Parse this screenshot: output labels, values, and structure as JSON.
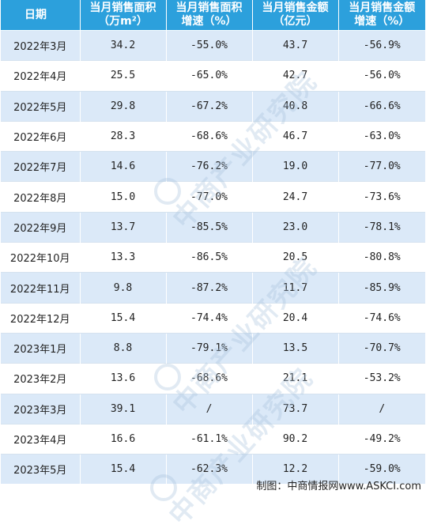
{
  "table": {
    "headers": [
      "日期",
      "当月销售面积\n（万m²）",
      "当月销售面积\n增速（%）",
      "当月销售金额\n（亿元）",
      "当月销售金额\n增速（%）"
    ],
    "rows": [
      [
        "2022年3月",
        "34.2",
        "-55.0%",
        "43.7",
        "-56.9%"
      ],
      [
        "2022年4月",
        "25.5",
        "-65.0%",
        "42.7",
        "-56.0%"
      ],
      [
        "2022年5月",
        "29.8",
        "-67.2%",
        "40.8",
        "-66.6%"
      ],
      [
        "2022年6月",
        "28.3",
        "-68.6%",
        "46.7",
        "-63.0%"
      ],
      [
        "2022年7月",
        "14.6",
        "-76.2%",
        "19.0",
        "-77.0%"
      ],
      [
        "2022年8月",
        "15.0",
        "-77.0%",
        "24.7",
        "-73.6%"
      ],
      [
        "2022年9月",
        "13.7",
        "-85.5%",
        "23.0",
        "-78.1%"
      ],
      [
        "2022年10月",
        "13.3",
        "-86.5%",
        "20.5",
        "-80.8%"
      ],
      [
        "2022年11月",
        "9.8",
        "-87.2%",
        "11.7",
        "-85.9%"
      ],
      [
        "2022年12月",
        "15.4",
        "-74.4%",
        "20.4",
        "-74.6%"
      ],
      [
        "2023年1月",
        "8.8",
        "-79.1%",
        "13.5",
        "-70.7%"
      ],
      [
        "2023年2月",
        "13.6",
        "-68.6%",
        "21.1",
        "-53.2%"
      ],
      [
        "2023年3月",
        "39.1",
        "/",
        "73.7",
        "/"
      ],
      [
        "2023年4月",
        "16.6",
        "-61.1%",
        "90.2",
        "-49.2%"
      ],
      [
        "2023年5月",
        "15.4",
        "-62.3%",
        "12.2",
        "-59.0%"
      ]
    ]
  },
  "watermark": "中商产业研究院",
  "footer": "制图：中商情报网www.ASKCI.com",
  "colors": {
    "header_bg": "#2ca0dc",
    "header_text": "#ffffff",
    "stripe_bg": "#dbe9f8",
    "row_bg": "#ffffff",
    "text": "#222222"
  }
}
